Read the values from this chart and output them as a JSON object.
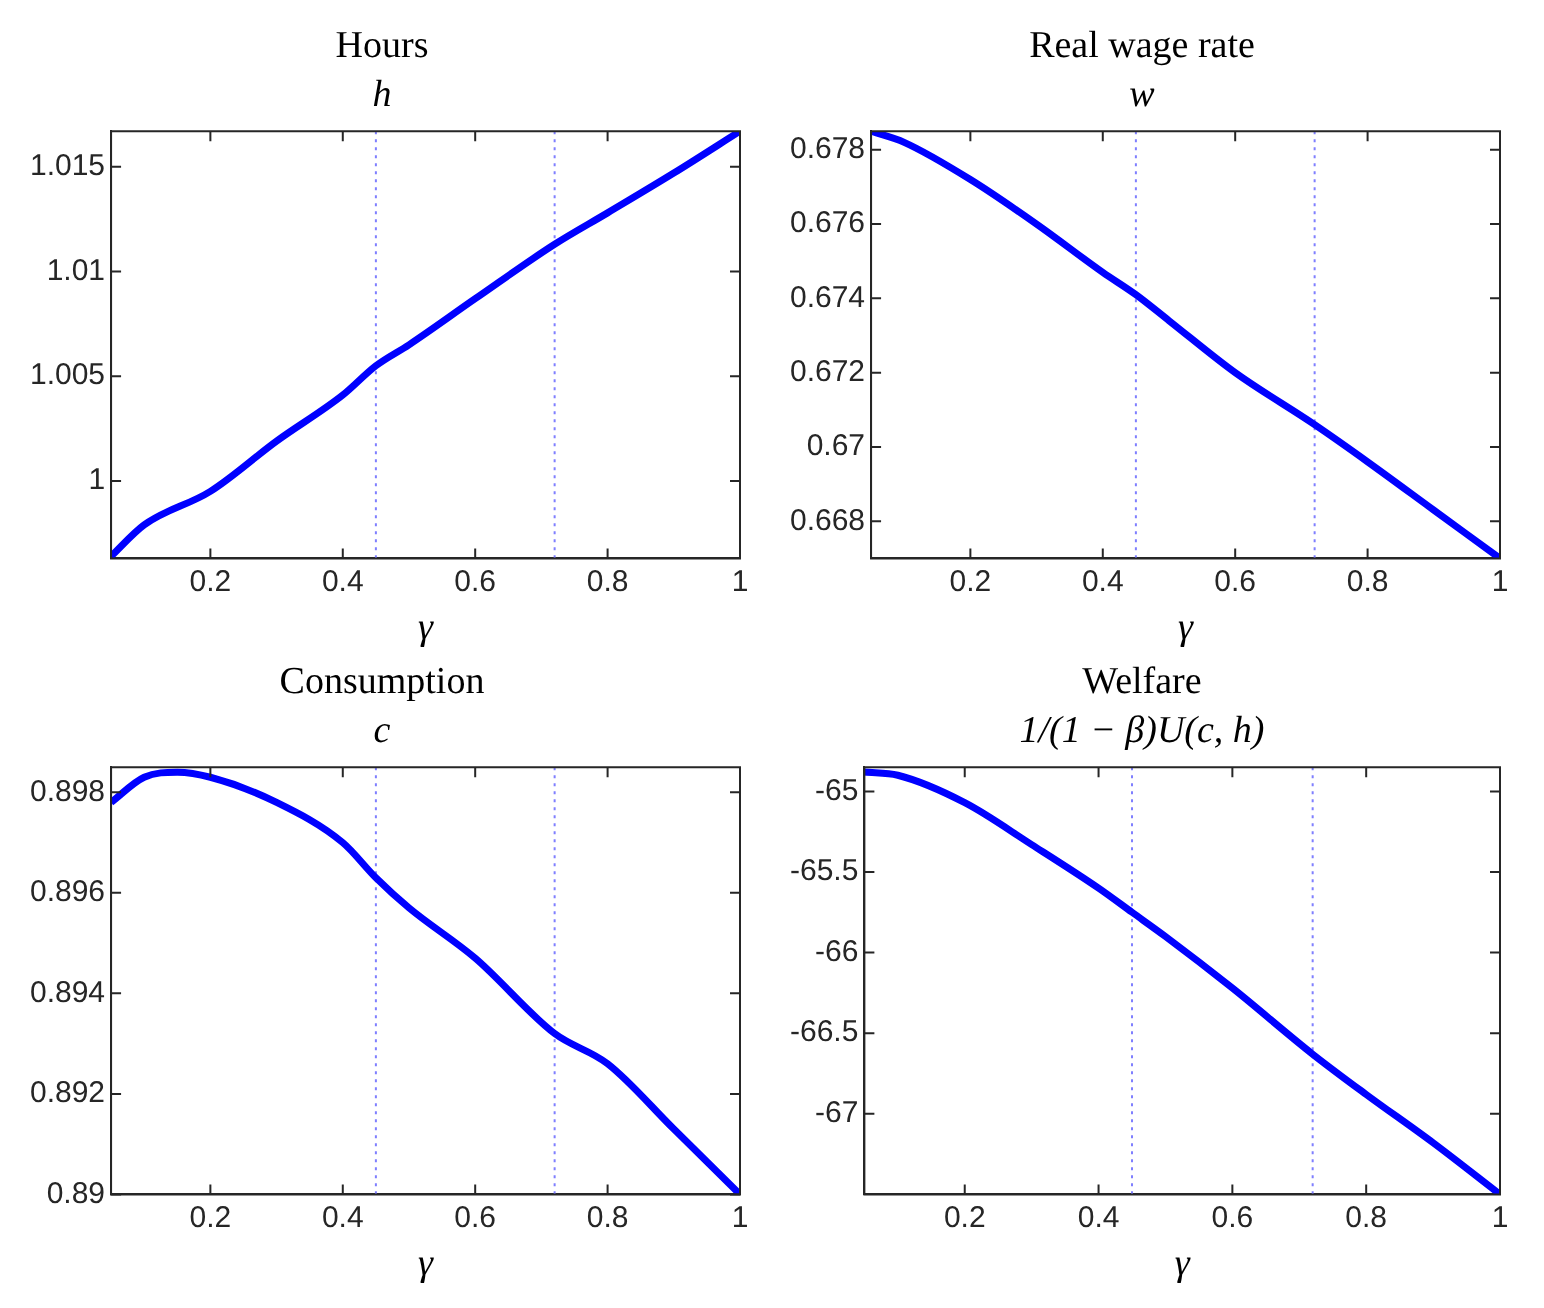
{
  "chart_data": [
    {
      "type": "line",
      "title": "Hours",
      "subtitle": "h",
      "xlabel": "γ",
      "x": [
        0.05,
        0.1,
        0.2,
        0.3,
        0.4,
        0.45,
        0.5,
        0.6,
        0.72,
        0.8,
        0.9,
        1.0
      ],
      "xlim": [
        0.05,
        1
      ],
      "xticks": [
        0.2,
        0.4,
        0.6,
        0.8,
        1
      ],
      "ylim": [
        0.9963,
        1.0167
      ],
      "yticks": [
        1,
        1.005,
        1.01,
        1.015
      ],
      "series": [
        {
          "color": "#0000ff",
          "values": [
            0.9964,
            0.9979,
            0.9995,
            1.0019,
            1.0041,
            1.0055,
            1.0065,
            1.0087,
            1.0113,
            1.0128,
            1.0147,
            1.0167
          ]
        }
      ],
      "ref_lines": [
        {
          "axis": "x",
          "value": 0.45,
          "color": "#7f7fff",
          "line_style": "dotted"
        },
        {
          "axis": "x",
          "value": 0.72,
          "color": "#7f7fff",
          "line_style": "dotted"
        }
      ]
    },
    {
      "type": "line",
      "title": "Real wage rate",
      "subtitle": "w",
      "xlabel": "γ",
      "x": [
        0.05,
        0.1,
        0.2,
        0.3,
        0.4,
        0.45,
        0.5,
        0.6,
        0.72,
        0.8,
        0.9,
        1.0
      ],
      "xlim": [
        0.05,
        1
      ],
      "xticks": [
        0.2,
        0.4,
        0.6,
        0.8,
        1
      ],
      "ylim": [
        0.667,
        0.6785
      ],
      "yticks": [
        0.668,
        0.67,
        0.672,
        0.674,
        0.676,
        0.678
      ],
      "series": [
        {
          "color": "#0000ff",
          "values": [
            0.6785,
            0.6782,
            0.6772,
            0.676,
            0.6747,
            0.6741,
            0.6734,
            0.672,
            0.6706,
            0.6696,
            0.6683,
            0.667
          ]
        }
      ],
      "ref_lines": [
        {
          "axis": "x",
          "value": 0.45,
          "color": "#7f7fff",
          "line_style": "dotted"
        },
        {
          "axis": "x",
          "value": 0.72,
          "color": "#7f7fff",
          "line_style": "dotted"
        }
      ]
    },
    {
      "type": "line",
      "title": "Consumption",
      "subtitle": "c",
      "xlabel": "γ",
      "x": [
        0.05,
        0.1,
        0.15,
        0.2,
        0.3,
        0.4,
        0.45,
        0.5,
        0.6,
        0.72,
        0.8,
        0.9,
        1.0
      ],
      "xlim": [
        0.05,
        1
      ],
      "xticks": [
        0.2,
        0.4,
        0.6,
        0.8,
        1
      ],
      "ylim": [
        0.89,
        0.8985
      ],
      "yticks": [
        0.89,
        0.892,
        0.894,
        0.896,
        0.898
      ],
      "series": [
        {
          "color": "#0000ff",
          "values": [
            0.8978,
            0.8983,
            0.8984,
            0.8983,
            0.8978,
            0.897,
            0.8963,
            0.8957,
            0.8947,
            0.8932,
            0.8926,
            0.8913,
            0.89
          ]
        }
      ],
      "ref_lines": [
        {
          "axis": "x",
          "value": 0.45,
          "color": "#7f7fff",
          "line_style": "dotted"
        },
        {
          "axis": "x",
          "value": 0.72,
          "color": "#7f7fff",
          "line_style": "dotted"
        }
      ]
    },
    {
      "type": "line",
      "title": "Welfare",
      "subtitle": "1/(1 − β)U(c, h)",
      "xlabel": "γ",
      "x": [
        0.05,
        0.1,
        0.2,
        0.3,
        0.4,
        0.45,
        0.5,
        0.6,
        0.72,
        0.8,
        0.9,
        1.0
      ],
      "xlim": [
        0.05,
        1
      ],
      "xticks": [
        0.2,
        0.4,
        0.6,
        0.8,
        1
      ],
      "ylim": [
        -67.5,
        -64.85
      ],
      "yticks": [
        -67,
        -66.5,
        -66,
        -65.5,
        -65
      ],
      "series": [
        {
          "color": "#0000ff",
          "values": [
            -64.88,
            -64.9,
            -65.07,
            -65.33,
            -65.6,
            -65.75,
            -65.9,
            -66.22,
            -66.63,
            -66.88,
            -67.18,
            -67.5
          ]
        }
      ],
      "ref_lines": [
        {
          "axis": "x",
          "value": 0.45,
          "color": "#7f7fff",
          "line_style": "dotted"
        },
        {
          "axis": "x",
          "value": 0.72,
          "color": "#7f7fff",
          "line_style": "dotted"
        }
      ]
    }
  ]
}
